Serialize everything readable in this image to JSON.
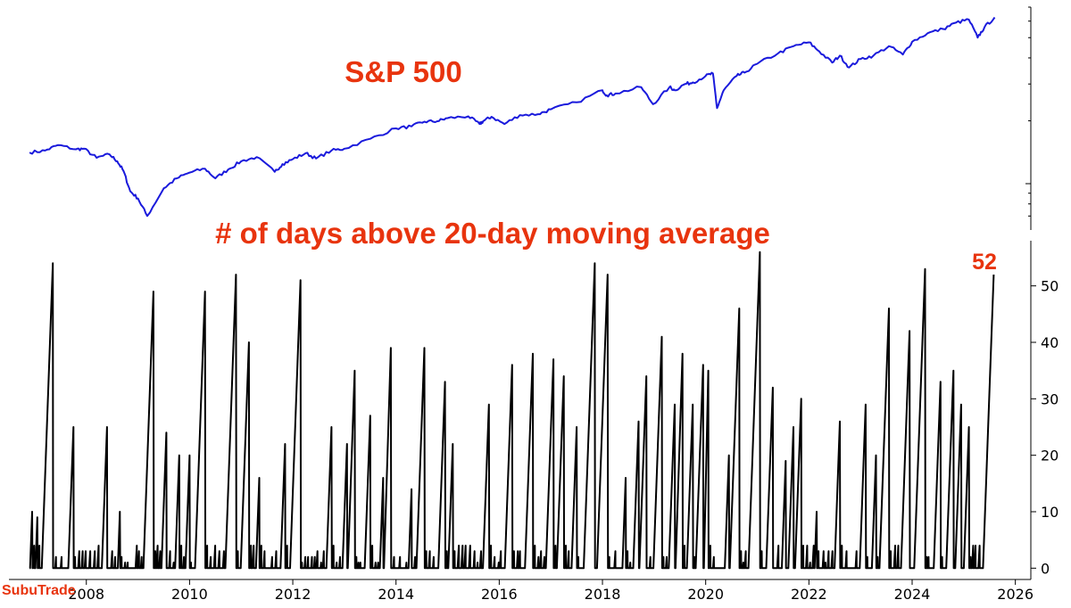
{
  "chart_data": [
    {
      "type": "line",
      "title": "S&P 500",
      "y_scale": "log",
      "y_tick_labels_shown": false,
      "color": "#1a1adc",
      "x_range": [
        2006.5,
        2026.3
      ],
      "y_range": [
        600,
        7000
      ],
      "x": [
        2006.9,
        2007.2,
        2007.45,
        2007.8,
        2007.95,
        2008.2,
        2008.45,
        2008.6,
        2008.72,
        2008.85,
        2009.0,
        2009.18,
        2009.5,
        2009.75,
        2010.0,
        2010.3,
        2010.5,
        2010.75,
        2011.0,
        2011.3,
        2011.65,
        2011.8,
        2012.0,
        2012.25,
        2012.45,
        2012.75,
        2013.0,
        2013.5,
        2014.0,
        2014.3,
        2014.55,
        2014.8,
        2015.0,
        2015.4,
        2015.62,
        2015.7,
        2015.85,
        2016.1,
        2016.4,
        2016.75,
        2017.0,
        2017.5,
        2018.0,
        2018.08,
        2018.25,
        2018.75,
        2018.98,
        2019.3,
        2019.4,
        2019.6,
        2019.75,
        2020.0,
        2020.14,
        2020.22,
        2020.35,
        2020.6,
        2020.75,
        2021.0,
        2021.4,
        2021.7,
        2022.0,
        2022.2,
        2022.45,
        2022.6,
        2022.78,
        2023.0,
        2023.25,
        2023.55,
        2023.82,
        2024.0,
        2024.3,
        2024.6,
        2024.85,
        2025.1,
        2025.27,
        2025.4,
        2025.6
      ],
      "y": [
        1410,
        1440,
        1530,
        1460,
        1470,
        1330,
        1380,
        1280,
        1150,
        920,
        850,
        700,
        950,
        1060,
        1130,
        1180,
        1060,
        1170,
        1280,
        1340,
        1140,
        1240,
        1310,
        1400,
        1320,
        1440,
        1470,
        1640,
        1840,
        1880,
        1980,
        1990,
        2060,
        2100,
        1930,
        2000,
        2090,
        1930,
        2130,
        2150,
        2270,
        2450,
        2800,
        2650,
        2700,
        2900,
        2400,
        2900,
        2800,
        3000,
        3050,
        3280,
        3370,
        2300,
        2800,
        3280,
        3400,
        3750,
        4200,
        4550,
        4750,
        4300,
        3800,
        4100,
        3600,
        3950,
        4100,
        4550,
        4150,
        4780,
        5250,
        5500,
        5900,
        6100,
        5000,
        5600,
        6250
      ]
    },
    {
      "type": "line",
      "title": "# of days above 20-day moving average",
      "color": "#000000",
      "x_range": [
        2006.5,
        2026.3
      ],
      "ylim": [
        -2,
        58
      ],
      "y_ticks": [
        "0",
        "10",
        "20",
        "30",
        "40",
        "50"
      ],
      "x_ticks": [
        "2008",
        "2010",
        "2012",
        "2014",
        "2016",
        "2018",
        "2020",
        "2022",
        "2024",
        "2026"
      ],
      "annotation": "52",
      "peaks": [
        {
          "x": 2006.95,
          "y": 10
        },
        {
          "x": 2007.05,
          "y": 9
        },
        {
          "x": 2007.35,
          "y": 54
        },
        {
          "x": 2007.75,
          "y": 25
        },
        {
          "x": 2008.4,
          "y": 25
        },
        {
          "x": 2008.65,
          "y": 10
        },
        {
          "x": 2009.3,
          "y": 49
        },
        {
          "x": 2009.55,
          "y": 24
        },
        {
          "x": 2009.8,
          "y": 20
        },
        {
          "x": 2010.0,
          "y": 20
        },
        {
          "x": 2010.3,
          "y": 49
        },
        {
          "x": 2010.9,
          "y": 52
        },
        {
          "x": 2011.15,
          "y": 40
        },
        {
          "x": 2011.35,
          "y": 16
        },
        {
          "x": 2011.85,
          "y": 22
        },
        {
          "x": 2012.15,
          "y": 51
        },
        {
          "x": 2012.75,
          "y": 25
        },
        {
          "x": 2013.05,
          "y": 22
        },
        {
          "x": 2013.2,
          "y": 35
        },
        {
          "x": 2013.5,
          "y": 27
        },
        {
          "x": 2013.75,
          "y": 16
        },
        {
          "x": 2013.9,
          "y": 39
        },
        {
          "x": 2014.3,
          "y": 14
        },
        {
          "x": 2014.55,
          "y": 39
        },
        {
          "x": 2014.95,
          "y": 33
        },
        {
          "x": 2015.1,
          "y": 22
        },
        {
          "x": 2015.8,
          "y": 29
        },
        {
          "x": 2016.25,
          "y": 36
        },
        {
          "x": 2016.65,
          "y": 38
        },
        {
          "x": 2017.05,
          "y": 37
        },
        {
          "x": 2017.25,
          "y": 34
        },
        {
          "x": 2017.5,
          "y": 25
        },
        {
          "x": 2017.85,
          "y": 54
        },
        {
          "x": 2018.1,
          "y": 52
        },
        {
          "x": 2018.45,
          "y": 16
        },
        {
          "x": 2018.7,
          "y": 26
        },
        {
          "x": 2018.85,
          "y": 34
        },
        {
          "x": 2019.15,
          "y": 41
        },
        {
          "x": 2019.4,
          "y": 29
        },
        {
          "x": 2019.55,
          "y": 38
        },
        {
          "x": 2019.75,
          "y": 29
        },
        {
          "x": 2019.95,
          "y": 36
        },
        {
          "x": 2020.05,
          "y": 35
        },
        {
          "x": 2020.45,
          "y": 20
        },
        {
          "x": 2020.65,
          "y": 46
        },
        {
          "x": 2021.05,
          "y": 56
        },
        {
          "x": 2021.3,
          "y": 32
        },
        {
          "x": 2021.55,
          "y": 19
        },
        {
          "x": 2021.7,
          "y": 25
        },
        {
          "x": 2021.85,
          "y": 30
        },
        {
          "x": 2022.15,
          "y": 10
        },
        {
          "x": 2022.6,
          "y": 26
        },
        {
          "x": 2023.1,
          "y": 29
        },
        {
          "x": 2023.3,
          "y": 20
        },
        {
          "x": 2023.55,
          "y": 46
        },
        {
          "x": 2023.95,
          "y": 42
        },
        {
          "x": 2024.25,
          "y": 53
        },
        {
          "x": 2024.55,
          "y": 33
        },
        {
          "x": 2024.8,
          "y": 35
        },
        {
          "x": 2024.95,
          "y": 29
        },
        {
          "x": 2025.1,
          "y": 25
        },
        {
          "x": 2025.58,
          "y": 52
        }
      ]
    }
  ],
  "labels": {
    "spx_title": "S&P 500",
    "bottom_title": "# of days above 20-day moving average",
    "last_value": "52",
    "brand": "SubuTrade"
  },
  "colors": {
    "spx_line": "#1a1adc",
    "count_line": "#000000",
    "annotation": "#e8340e"
  }
}
